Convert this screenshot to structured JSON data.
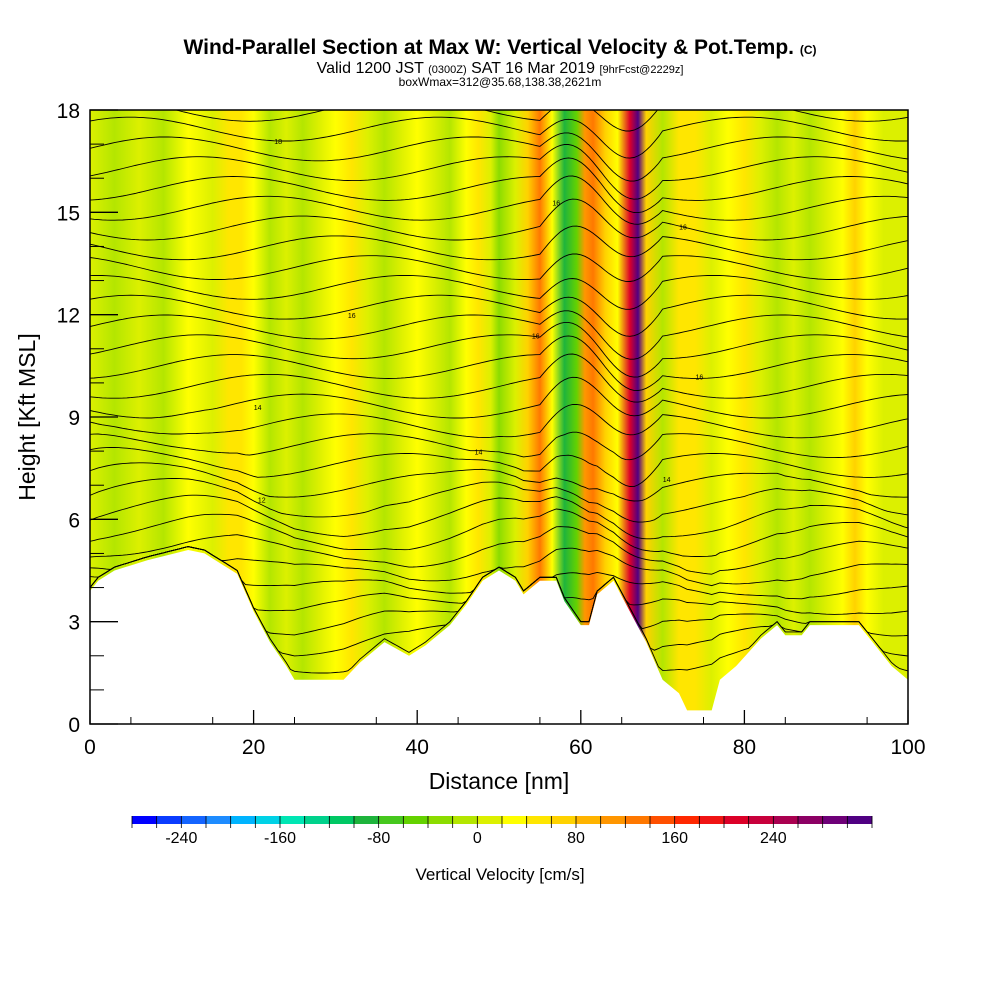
{
  "title": {
    "main": "Wind-Parallel Section at Max W: Vertical Velocity & Pot.Temp.",
    "copyright": "(C)",
    "valid_prefix": "Valid 1200 JST",
    "valid_utc": "(0300Z)",
    "valid_date": "SAT 16 Mar 2019",
    "forecast": "[9hrFcst@2229z]",
    "box": "boxWmax=312@35.68,138.38,2621m"
  },
  "chart_data": {
    "type": "heatmap",
    "xlabel": "Distance [nm]",
    "ylabel": "Height [Kft MSL]",
    "xlim": [
      0,
      100
    ],
    "ylim": [
      0,
      18
    ],
    "x_ticks": [
      0,
      20,
      40,
      60,
      80,
      100
    ],
    "y_ticks": [
      0,
      3,
      6,
      9,
      12,
      15,
      18
    ],
    "vertical_velocity_bands_cm_s": [
      {
        "x": 0,
        "w": 0
      },
      {
        "x": 3,
        "w": -20
      },
      {
        "x": 6,
        "w": 10
      },
      {
        "x": 9,
        "w": -10
      },
      {
        "x": 12,
        "w": 20
      },
      {
        "x": 15,
        "w": 10
      },
      {
        "x": 17,
        "w": 45
      },
      {
        "x": 18.5,
        "w": 55
      },
      {
        "x": 20,
        "w": 30
      },
      {
        "x": 22,
        "w": -10
      },
      {
        "x": 24,
        "w": 5
      },
      {
        "x": 26,
        "w": -20
      },
      {
        "x": 28,
        "w": 0
      },
      {
        "x": 30,
        "w": 30
      },
      {
        "x": 32,
        "w": 45
      },
      {
        "x": 34,
        "w": 10
      },
      {
        "x": 36,
        "w": -10
      },
      {
        "x": 38,
        "w": 5
      },
      {
        "x": 40,
        "w": 25
      },
      {
        "x": 42,
        "w": 5
      },
      {
        "x": 44,
        "w": -10
      },
      {
        "x": 46,
        "w": 35
      },
      {
        "x": 47.5,
        "w": 50
      },
      {
        "x": 49,
        "w": 15
      },
      {
        "x": 50,
        "w": -30
      },
      {
        "x": 52,
        "w": 0
      },
      {
        "x": 53.5,
        "w": 70
      },
      {
        "x": 55,
        "w": 120
      },
      {
        "x": 56.5,
        "w": 30
      },
      {
        "x": 58,
        "w": -100
      },
      {
        "x": 59.5,
        "w": -60
      },
      {
        "x": 60.5,
        "w": 100
      },
      {
        "x": 61.5,
        "w": 120
      },
      {
        "x": 63,
        "w": 60
      },
      {
        "x": 64.5,
        "w": 20
      },
      {
        "x": 66,
        "w": 200
      },
      {
        "x": 67,
        "w": 300
      },
      {
        "x": 68,
        "w": 60
      },
      {
        "x": 70,
        "w": -10
      },
      {
        "x": 72,
        "w": 40
      },
      {
        "x": 74,
        "w": 50
      },
      {
        "x": 76,
        "w": 10
      },
      {
        "x": 78,
        "w": 25
      },
      {
        "x": 80,
        "w": 45
      },
      {
        "x": 82,
        "w": 10
      },
      {
        "x": 84,
        "w": -10
      },
      {
        "x": 86,
        "w": 15
      },
      {
        "x": 88,
        "w": -20
      },
      {
        "x": 90,
        "w": 10
      },
      {
        "x": 92,
        "w": 30
      },
      {
        "x": 93.5,
        "w": 60
      },
      {
        "x": 95,
        "w": 20
      },
      {
        "x": 97,
        "w": 0
      },
      {
        "x": 100,
        "w": 10
      }
    ],
    "terrain_kft": [
      {
        "x": 0,
        "h": 3.9
      },
      {
        "x": 1,
        "h": 4.2
      },
      {
        "x": 3,
        "h": 4.5
      },
      {
        "x": 7,
        "h": 4.8
      },
      {
        "x": 12,
        "h": 5.1
      },
      {
        "x": 14,
        "h": 5.0
      },
      {
        "x": 16,
        "h": 4.7
      },
      {
        "x": 18,
        "h": 4.4
      },
      {
        "x": 20,
        "h": 3.3
      },
      {
        "x": 22,
        "h": 2.4
      },
      {
        "x": 24,
        "h": 1.7
      },
      {
        "x": 25,
        "h": 1.3
      },
      {
        "x": 28,
        "h": 1.3
      },
      {
        "x": 31,
        "h": 1.3
      },
      {
        "x": 33,
        "h": 1.8
      },
      {
        "x": 36,
        "h": 2.4
      },
      {
        "x": 39,
        "h": 2.0
      },
      {
        "x": 41,
        "h": 2.3
      },
      {
        "x": 44,
        "h": 2.9
      },
      {
        "x": 46,
        "h": 3.5
      },
      {
        "x": 48,
        "h": 4.2
      },
      {
        "x": 50,
        "h": 4.5
      },
      {
        "x": 52,
        "h": 4.2
      },
      {
        "x": 53,
        "h": 3.8
      },
      {
        "x": 55,
        "h": 4.2
      },
      {
        "x": 57,
        "h": 4.2
      },
      {
        "x": 58,
        "h": 3.6
      },
      {
        "x": 60,
        "h": 2.9
      },
      {
        "x": 61,
        "h": 2.9
      },
      {
        "x": 62,
        "h": 3.8
      },
      {
        "x": 64,
        "h": 4.2
      },
      {
        "x": 68,
        "h": 2.4
      },
      {
        "x": 70,
        "h": 1.3
      },
      {
        "x": 72,
        "h": 0.9
      },
      {
        "x": 73,
        "h": 0.4
      },
      {
        "x": 76,
        "h": 0.4
      },
      {
        "x": 77,
        "h": 1.3
      },
      {
        "x": 79,
        "h": 1.7
      },
      {
        "x": 82,
        "h": 2.5
      },
      {
        "x": 84,
        "h": 2.9
      },
      {
        "x": 85,
        "h": 2.6
      },
      {
        "x": 87,
        "h": 2.6
      },
      {
        "x": 88,
        "h": 2.9
      },
      {
        "x": 94,
        "h": 2.9
      },
      {
        "x": 96,
        "h": 2.3
      },
      {
        "x": 98,
        "h": 1.7
      },
      {
        "x": 100,
        "h": 1.3
      }
    ],
    "contour_labels": [
      {
        "x": 23,
        "y": 17.0,
        "text": "18"
      },
      {
        "x": 57,
        "y": 15.2,
        "text": "16"
      },
      {
        "x": 72.5,
        "y": 14.5,
        "text": "16"
      },
      {
        "x": 32,
        "y": 11.9,
        "text": "16"
      },
      {
        "x": 54.5,
        "y": 11.3,
        "text": "16"
      },
      {
        "x": 74.5,
        "y": 10.1,
        "text": "16"
      },
      {
        "x": 20.5,
        "y": 9.2,
        "text": "14"
      },
      {
        "x": 47.5,
        "y": 7.9,
        "text": "14"
      },
      {
        "x": 70.5,
        "y": 7.1,
        "text": "14"
      },
      {
        "x": 21,
        "y": 6.5,
        "text": "12"
      }
    ]
  },
  "colorbar": {
    "title": "Vertical Velocity [cm/s]",
    "labels": [
      {
        "value": -240,
        "text": "-240"
      },
      {
        "value": -160,
        "text": "-160"
      },
      {
        "value": -80,
        "text": "-80"
      },
      {
        "value": 0,
        "text": "0"
      },
      {
        "value": 80,
        "text": "80"
      },
      {
        "value": 160,
        "text": "160"
      },
      {
        "value": 240,
        "text": "240"
      }
    ],
    "colors": [
      "#0000ff",
      "#0a3cff",
      "#1464ff",
      "#1e8cff",
      "#00b4ff",
      "#00d2e6",
      "#00e6b4",
      "#00d28c",
      "#00c864",
      "#1eb43c",
      "#46c81e",
      "#64d200",
      "#8cdc00",
      "#b4e600",
      "#dcf000",
      "#ffff00",
      "#ffe600",
      "#ffd200",
      "#ffb400",
      "#ff9600",
      "#ff7800",
      "#ff5000",
      "#ff2800",
      "#f01414",
      "#dc0028",
      "#c8003c",
      "#aa0050",
      "#8c0064",
      "#6e0078",
      "#500082"
    ],
    "min": -280,
    "step": 20
  }
}
